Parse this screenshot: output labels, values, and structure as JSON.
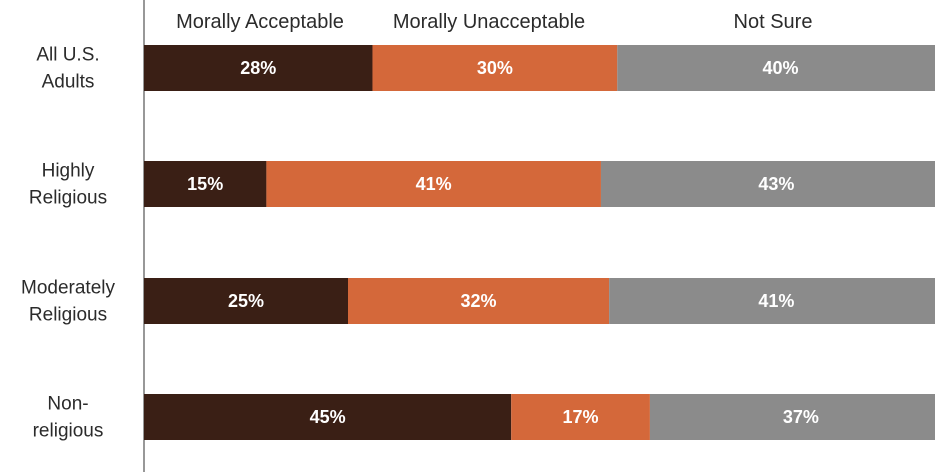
{
  "chart_data": {
    "type": "bar",
    "orientation": "horizontal",
    "stacked": true,
    "title": "",
    "xlabel": "",
    "ylabel": "",
    "xlim": [
      0,
      100
    ],
    "legend_position": "top",
    "grid": false,
    "categories": [
      "All U.S. Adults",
      "Highly Religious",
      "Moderately Religious",
      "Non-religious"
    ],
    "category_label_lines": [
      [
        "All U.S.",
        "Adults"
      ],
      [
        "Highly",
        "Religious"
      ],
      [
        "Moderately",
        "Religious"
      ],
      [
        "Non-",
        "religious"
      ]
    ],
    "series": [
      {
        "name": "Morally Acceptable",
        "color": "#3a1f15",
        "values": [
          28,
          15,
          25,
          45
        ],
        "labels": [
          "28%",
          "15%",
          "25%",
          "45%"
        ]
      },
      {
        "name": "Morally Unacceptable",
        "color": "#d4683a",
        "values": [
          30,
          41,
          32,
          17
        ],
        "labels": [
          "30%",
          "41%",
          "32%",
          "17%"
        ]
      },
      {
        "name": "Not Sure",
        "color": "#8b8b8b",
        "values": [
          40,
          43,
          41,
          37
        ],
        "labels": [
          "40%",
          "43%",
          "41%",
          "37%"
        ]
      }
    ]
  }
}
